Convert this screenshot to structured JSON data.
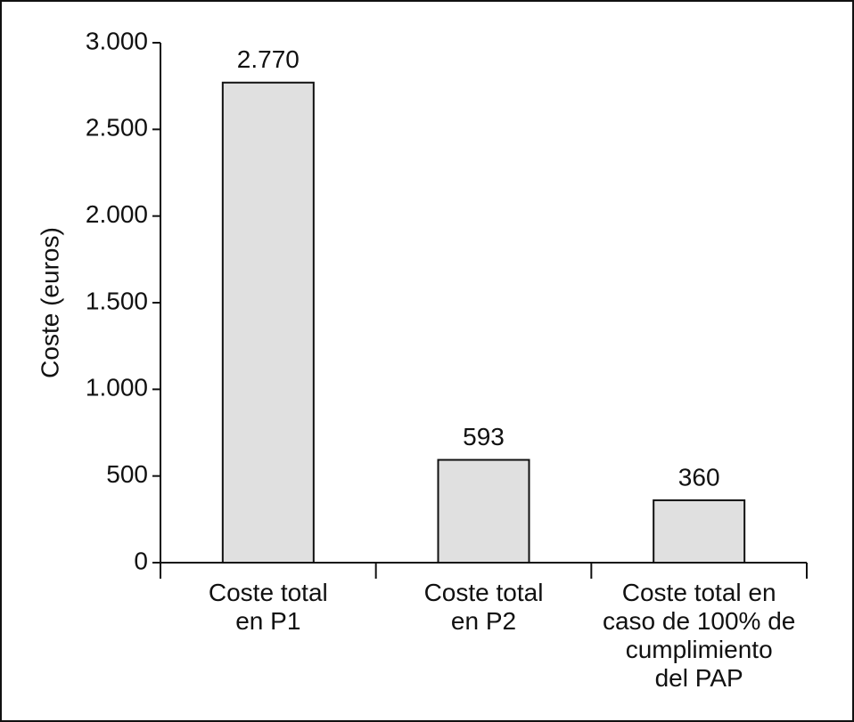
{
  "chart_data": {
    "type": "bar",
    "y_label": "Coste (euros)",
    "categories": [
      "Coste total\nen P1",
      "Coste total\nen P2",
      "Coste total en\ncaso de 100% de\ncumplimiento\ndel PAP"
    ],
    "values": [
      2770,
      593,
      360
    ],
    "value_labels": [
      "2.770",
      "593",
      "360"
    ],
    "color": "#e0e0e0",
    "ylim": [
      0,
      3000
    ],
    "yticks": [
      0,
      500,
      {
        "value": 1000,
        "label": "1.000"
      },
      {
        "value": 1500,
        "label": "1.500"
      },
      {
        "value": 2000,
        "label": "2.000"
      },
      {
        "value": 2500,
        "label": "2.500"
      },
      {
        "value": 3000,
        "label": "3.000"
      }
    ]
  }
}
